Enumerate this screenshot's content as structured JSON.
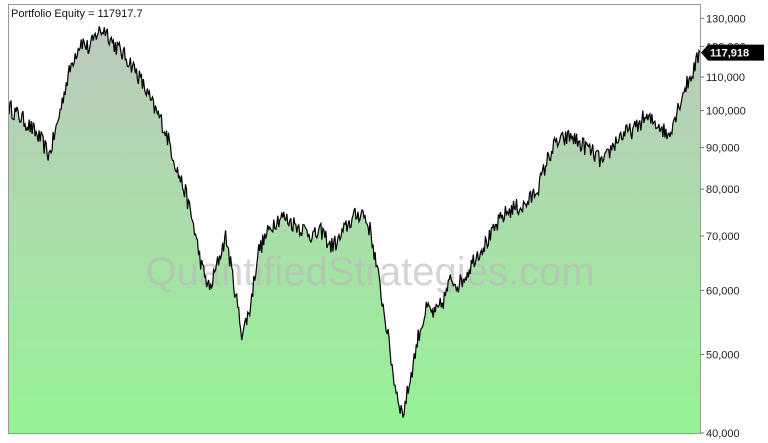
{
  "chart_data": {
    "type": "area",
    "title": "Portfolio Equity = 117917.7",
    "watermark": "QuantifiedStrategies.com",
    "y_scale": "log",
    "ylim": [
      40000,
      135000
    ],
    "y_ticks": [
      40000,
      50000,
      60000,
      70000,
      80000,
      90000,
      100000,
      110000,
      120000,
      130000
    ],
    "y_tick_labels": [
      "40,000",
      "50,000",
      "60,000",
      "70,000",
      "80,000",
      "90,000",
      "100,000",
      "110,000",
      "120,000",
      "130,000"
    ],
    "last_value_label": "117,918",
    "last_value": 117918,
    "grid": false,
    "colors": {
      "line": "#000000",
      "fill_top": "#bdc9bd",
      "fill_bottom": "#95f395",
      "badge": "#000000"
    },
    "series": [
      {
        "values": [
          101000,
          99000,
          97000,
          94500,
          92000,
          88000,
          96000,
          107000,
          116000,
          122000,
          119000,
          125000,
          126000,
          121000,
          118000,
          115000,
          111000,
          106000,
          101000,
          97000,
          91000,
          84000,
          79000,
          72000,
          64000,
          60000,
          65000,
          70000,
          61000,
          53000,
          57000,
          67000,
          70000,
          73000,
          74000,
          73000,
          72000,
          71000,
          70000,
          71000,
          68000,
          69000,
          72000,
          74000,
          75000,
          71000,
          62000,
          54000,
          46000,
          42000,
          47000,
          53000,
          57000,
          56000,
          58000,
          62000,
          61000,
          63000,
          66000,
          68000,
          70000,
          73000,
          75000,
          76000,
          76000,
          78000,
          81000,
          87000,
          91000,
          92000,
          93000,
          91000,
          90000,
          88000,
          86000,
          90000,
          93000,
          94000,
          95000,
          98000,
          97000,
          96000,
          93000,
          99000,
          106000,
          111000,
          117918
        ]
      }
    ]
  }
}
